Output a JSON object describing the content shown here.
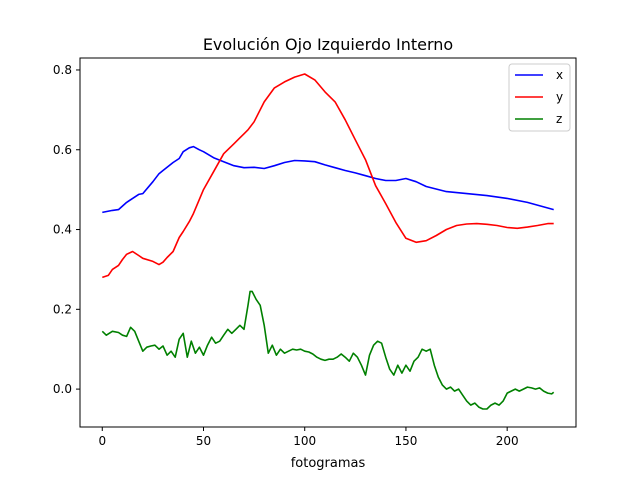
{
  "chart_data": {
    "type": "line",
    "title": "Evolución Ojo Izquierdo Interno",
    "xlabel": "fotogramas",
    "ylabel": "",
    "xlim": [
      -11,
      234
    ],
    "ylim": [
      -0.095,
      0.83
    ],
    "xticks": [
      0,
      50,
      100,
      150,
      200
    ],
    "yticks": [
      0.0,
      0.2,
      0.4,
      0.6,
      0.8
    ],
    "xtick_labels": [
      "0",
      "50",
      "100",
      "150",
      "200"
    ],
    "ytick_labels": [
      "0.0",
      "0.2",
      "0.4",
      "0.6",
      "0.8"
    ],
    "grid": false,
    "legend": "top-right",
    "series": [
      {
        "name": "x",
        "color": "#0000ff",
        "x": [
          0,
          5,
          8,
          12,
          15,
          18,
          20,
          25,
          28,
          30,
          35,
          38,
          40,
          43,
          45,
          48,
          50,
          55,
          60,
          65,
          70,
          75,
          80,
          85,
          90,
          95,
          100,
          105,
          110,
          115,
          120,
          125,
          130,
          135,
          140,
          145,
          150,
          155,
          160,
          170,
          180,
          190,
          200,
          210,
          223
        ],
        "y": [
          0.443,
          0.448,
          0.45,
          0.468,
          0.478,
          0.488,
          0.49,
          0.52,
          0.54,
          0.548,
          0.568,
          0.578,
          0.595,
          0.605,
          0.608,
          0.6,
          0.595,
          0.58,
          0.57,
          0.56,
          0.555,
          0.556,
          0.553,
          0.56,
          0.568,
          0.573,
          0.572,
          0.57,
          0.562,
          0.555,
          0.548,
          0.542,
          0.535,
          0.528,
          0.523,
          0.523,
          0.528,
          0.52,
          0.508,
          0.495,
          0.49,
          0.485,
          0.478,
          0.468,
          0.45
        ]
      },
      {
        "name": "y",
        "color": "#ff0000",
        "x": [
          0,
          3,
          5,
          8,
          10,
          12,
          15,
          18,
          20,
          25,
          28,
          30,
          32,
          35,
          38,
          40,
          43,
          45,
          50,
          55,
          60,
          65,
          68,
          70,
          72,
          75,
          80,
          85,
          90,
          95,
          100,
          105,
          110,
          115,
          120,
          125,
          130,
          135,
          140,
          145,
          150,
          155,
          160,
          165,
          170,
          175,
          180,
          185,
          190,
          195,
          200,
          205,
          210,
          215,
          220,
          223
        ],
        "y": [
          0.28,
          0.285,
          0.3,
          0.31,
          0.325,
          0.338,
          0.345,
          0.335,
          0.328,
          0.32,
          0.312,
          0.318,
          0.33,
          0.345,
          0.38,
          0.395,
          0.42,
          0.44,
          0.5,
          0.545,
          0.59,
          0.615,
          0.63,
          0.64,
          0.65,
          0.67,
          0.72,
          0.755,
          0.77,
          0.782,
          0.79,
          0.775,
          0.745,
          0.72,
          0.675,
          0.625,
          0.575,
          0.51,
          0.465,
          0.418,
          0.378,
          0.368,
          0.372,
          0.385,
          0.4,
          0.41,
          0.414,
          0.415,
          0.413,
          0.41,
          0.405,
          0.403,
          0.406,
          0.41,
          0.415,
          0.415
        ]
      },
      {
        "name": "z",
        "color": "#008000",
        "x": [
          0,
          2,
          5,
          8,
          10,
          12,
          14,
          16,
          18,
          20,
          22,
          24,
          26,
          28,
          30,
          32,
          34,
          36,
          38,
          40,
          42,
          44,
          46,
          48,
          50,
          52,
          54,
          56,
          58,
          60,
          62,
          64,
          66,
          68,
          70,
          72,
          73,
          74,
          76,
          78,
          80,
          82,
          84,
          86,
          88,
          90,
          92,
          94,
          96,
          98,
          100,
          102,
          104,
          106,
          108,
          110,
          112,
          114,
          116,
          118,
          120,
          122,
          124,
          126,
          128,
          130,
          132,
          134,
          136,
          138,
          140,
          142,
          144,
          146,
          148,
          150,
          152,
          154,
          156,
          158,
          160,
          162,
          164,
          166,
          168,
          170,
          172,
          174,
          176,
          178,
          180,
          182,
          184,
          186,
          188,
          190,
          192,
          194,
          196,
          198,
          200,
          202,
          204,
          206,
          208,
          210,
          212,
          214,
          216,
          218,
          220,
          222,
          223
        ],
        "y": [
          0.145,
          0.135,
          0.145,
          0.142,
          0.135,
          0.132,
          0.155,
          0.145,
          0.12,
          0.095,
          0.105,
          0.108,
          0.11,
          0.1,
          0.108,
          0.085,
          0.095,
          0.08,
          0.125,
          0.14,
          0.08,
          0.12,
          0.09,
          0.105,
          0.085,
          0.11,
          0.13,
          0.115,
          0.12,
          0.135,
          0.15,
          0.14,
          0.15,
          0.16,
          0.15,
          0.21,
          0.245,
          0.245,
          0.225,
          0.21,
          0.16,
          0.09,
          0.11,
          0.085,
          0.1,
          0.09,
          0.095,
          0.1,
          0.098,
          0.1,
          0.095,
          0.093,
          0.088,
          0.08,
          0.075,
          0.072,
          0.075,
          0.075,
          0.08,
          0.088,
          0.08,
          0.07,
          0.09,
          0.08,
          0.06,
          0.035,
          0.085,
          0.11,
          0.12,
          0.115,
          0.08,
          0.05,
          0.035,
          0.06,
          0.04,
          0.06,
          0.045,
          0.07,
          0.08,
          0.1,
          0.095,
          0.1,
          0.06,
          0.03,
          0.01,
          0.0,
          0.005,
          -0.005,
          0.0,
          -0.015,
          -0.03,
          -0.04,
          -0.035,
          -0.045,
          -0.05,
          -0.05,
          -0.04,
          -0.035,
          -0.04,
          -0.03,
          -0.01,
          -0.005,
          0.0,
          -0.005,
          0.0,
          0.005,
          0.003,
          0.0,
          0.003,
          -0.005,
          -0.01,
          -0.012,
          -0.008
        ]
      }
    ]
  }
}
